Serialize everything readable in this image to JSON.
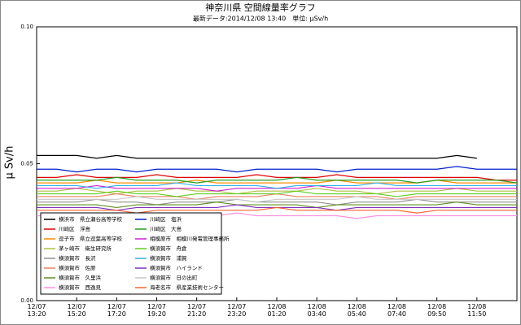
{
  "chart_data": {
    "type": "line",
    "title": "神奈川県 空間線量率グラフ",
    "subtitle": "最新データ:2014/12/08 13:40　単位: μSv/h",
    "y_label": "μ Sv/h",
    "x": [
      0,
      0.5,
      1,
      1.5,
      2,
      2.5,
      3,
      3.5,
      4,
      4.5,
      5,
      5.5,
      6,
      6.5,
      7,
      7.5,
      8,
      8.5,
      9,
      9.5,
      10,
      10.5,
      11,
      11.5,
      12
    ],
    "xlim": [
      0,
      12
    ],
    "xticks": [
      {
        "value": 0,
        "label": "12/07 13:20"
      },
      {
        "value": 1,
        "label": "12/07 15:20"
      },
      {
        "value": 2,
        "label": "12/07 17:20"
      },
      {
        "value": 3,
        "label": "12/07 19:20"
      },
      {
        "value": 4,
        "label": "12/07 21:20"
      },
      {
        "value": 5,
        "label": "12/07 23:20"
      },
      {
        "value": 6,
        "label": "12/08 01:20"
      },
      {
        "value": 7,
        "label": "12/08 03:40"
      },
      {
        "value": 8,
        "label": "12/08 05:40"
      },
      {
        "value": 9,
        "label": "12/08 07:40"
      },
      {
        "value": 10,
        "label": "12/08 09:50"
      },
      {
        "value": 11,
        "label": "12/08 11:50"
      }
    ],
    "ylim": [
      0,
      0.1
    ],
    "yticks": [
      {
        "value": 0,
        "label": "0.00"
      },
      {
        "value": 0.05,
        "label": "0.05"
      },
      {
        "value": 0.1,
        "label": "0.10"
      }
    ],
    "grid": false,
    "legend": "lower left",
    "series": [
      {
        "name": "横浜市　県立瀬谷高等学校",
        "color": "#000000",
        "values": [
          0.053,
          0.053,
          0.053,
          0.052,
          0.053,
          0.052,
          0.052,
          0.052,
          0.052,
          0.052,
          0.052,
          0.052,
          0.052,
          0.052,
          0.052,
          0.052,
          0.052,
          0.052,
          0.052,
          0.052,
          0.052,
          0.053,
          0.052,
          null,
          null
        ]
      },
      {
        "name": "川崎区　浮島",
        "color": "#e00000",
        "values": [
          0.045,
          0.045,
          0.046,
          0.045,
          0.045,
          0.045,
          0.046,
          0.045,
          0.045,
          0.045,
          0.045,
          0.046,
          0.045,
          0.045,
          0.045,
          0.046,
          0.045,
          0.045,
          0.045,
          0.045,
          0.045,
          0.045,
          0.045,
          0.044,
          0.044
        ]
      },
      {
        "name": "逗子市　県立逗葉高等学校",
        "color": "#ff8c00",
        "values": [
          0.043,
          0.043,
          0.043,
          0.044,
          0.043,
          0.043,
          0.043,
          0.043,
          0.044,
          0.043,
          0.043,
          0.043,
          0.043,
          0.043,
          0.043,
          0.044,
          0.043,
          0.043,
          0.043,
          0.043,
          0.044,
          0.043,
          0.043,
          0.043,
          0.043
        ]
      },
      {
        "name": "茅ヶ崎市　衛生研究所",
        "color": "#b0c040",
        "values": [
          0.04,
          0.04,
          0.041,
          0.04,
          0.039,
          0.04,
          0.04,
          0.041,
          0.04,
          0.04,
          0.039,
          0.04,
          0.04,
          0.04,
          0.041,
          0.04,
          0.04,
          0.039,
          0.04,
          0.04,
          0.04,
          0.041,
          0.04,
          0.04,
          0.04
        ]
      },
      {
        "name": "横須賀市　長沢",
        "color": "#909090",
        "values": [
          0.036,
          0.036,
          0.036,
          0.037,
          0.036,
          0.036,
          0.035,
          0.036,
          0.036,
          0.036,
          0.037,
          0.036,
          0.036,
          0.036,
          0.036,
          0.035,
          0.036,
          0.036,
          0.036,
          0.037,
          0.036,
          0.036,
          0.036,
          0.036,
          0.036
        ]
      },
      {
        "name": "横須賀市　佐原",
        "color": "#f08060",
        "values": [
          0.038,
          0.038,
          0.038,
          0.038,
          0.039,
          0.038,
          0.038,
          0.038,
          0.037,
          0.038,
          0.038,
          0.038,
          0.039,
          0.038,
          0.038,
          0.038,
          0.038,
          0.038,
          0.037,
          0.038,
          0.038,
          0.038,
          0.038,
          0.038,
          0.038
        ]
      },
      {
        "name": "横須賀市　久里浜",
        "color": "#609020",
        "values": [
          0.035,
          0.035,
          0.035,
          0.035,
          0.034,
          0.035,
          0.035,
          0.035,
          0.035,
          0.036,
          0.035,
          0.035,
          0.035,
          0.035,
          0.034,
          0.035,
          0.035,
          0.035,
          0.035,
          0.035,
          0.035,
          0.036,
          0.035,
          0.035,
          0.035
        ]
      },
      {
        "name": "横須賀市　西逸見",
        "color": "#ff90e0",
        "values": [
          0.031,
          0.031,
          0.031,
          0.032,
          0.031,
          0.031,
          0.031,
          0.031,
          0.031,
          0.031,
          0.032,
          0.031,
          0.031,
          0.031,
          0.031,
          0.031,
          0.03,
          0.031,
          0.031,
          0.031,
          0.031,
          0.031,
          0.031,
          0.031,
          0.031
        ]
      },
      {
        "name": "川崎区　塩浜",
        "color": "#0020d0",
        "values": [
          0.048,
          0.048,
          0.047,
          0.048,
          0.048,
          0.047,
          0.048,
          0.048,
          0.048,
          0.048,
          0.047,
          0.048,
          0.048,
          0.048,
          0.048,
          0.047,
          0.048,
          0.048,
          0.048,
          0.048,
          0.048,
          0.049,
          0.048,
          0.048,
          0.048
        ]
      },
      {
        "name": "川崎区　大島",
        "color": "#20a020",
        "values": [
          0.044,
          0.044,
          0.044,
          0.044,
          0.045,
          0.044,
          0.044,
          0.044,
          0.043,
          0.044,
          0.044,
          0.044,
          0.044,
          0.045,
          0.044,
          0.044,
          0.044,
          0.044,
          0.044,
          0.043,
          0.044,
          0.044,
          0.044,
          0.044,
          0.043
        ]
      },
      {
        "name": "相模原市　相模川発電管理事務所",
        "color": "#d020d0",
        "values": [
          0.041,
          0.041,
          0.041,
          0.042,
          0.041,
          0.041,
          0.041,
          0.041,
          0.041,
          0.04,
          0.041,
          0.041,
          0.041,
          0.041,
          0.042,
          0.041,
          0.041,
          0.041,
          0.041,
          0.041,
          0.041,
          0.041,
          0.041,
          0.041,
          0.041
        ]
      },
      {
        "name": "横須賀市　舟倉",
        "color": "#60d020",
        "values": [
          0.039,
          0.039,
          0.039,
          0.039,
          0.04,
          0.039,
          0.039,
          0.038,
          0.039,
          0.039,
          0.039,
          0.039,
          0.039,
          0.04,
          0.039,
          0.039,
          0.039,
          0.039,
          0.038,
          0.039,
          0.039,
          0.039,
          0.039,
          0.039,
          0.039
        ]
      },
      {
        "name": "横須賀市　浦賀",
        "color": "#30b0f0",
        "values": [
          0.042,
          0.042,
          0.042,
          0.041,
          0.042,
          0.042,
          0.042,
          0.043,
          0.042,
          0.042,
          0.042,
          0.042,
          0.041,
          0.042,
          0.042,
          0.042,
          0.042,
          0.043,
          0.042,
          0.042,
          0.042,
          0.042,
          0.042,
          0.042,
          0.042
        ]
      },
      {
        "name": "横須賀市　ハイランド",
        "color": "#8030c0",
        "values": [
          0.034,
          0.034,
          0.034,
          0.034,
          0.033,
          0.034,
          0.034,
          0.034,
          0.034,
          0.034,
          0.035,
          0.034,
          0.034,
          0.034,
          0.034,
          0.033,
          0.034,
          0.034,
          0.034,
          0.034,
          0.034,
          0.034,
          0.034,
          0.034,
          0.034
        ]
      },
      {
        "name": "横須賀市　日の出町",
        "color": "#c8c8c8",
        "values": [
          0.037,
          0.037,
          0.037,
          0.037,
          0.037,
          0.038,
          0.037,
          0.037,
          0.037,
          0.037,
          0.037,
          0.036,
          0.037,
          0.037,
          0.037,
          0.037,
          0.038,
          0.037,
          0.037,
          0.037,
          0.037,
          0.037,
          0.037,
          0.037,
          0.037
        ]
      },
      {
        "name": "海老名市　県産業技術センター",
        "color": "#ff6030",
        "values": [
          0.033,
          0.033,
          0.033,
          0.033,
          0.033,
          0.032,
          0.033,
          0.033,
          0.033,
          0.033,
          0.033,
          0.033,
          0.034,
          0.033,
          0.033,
          0.033,
          0.033,
          0.033,
          0.033,
          0.032,
          0.033,
          0.033,
          0.033,
          0.033,
          0.033
        ]
      }
    ]
  }
}
